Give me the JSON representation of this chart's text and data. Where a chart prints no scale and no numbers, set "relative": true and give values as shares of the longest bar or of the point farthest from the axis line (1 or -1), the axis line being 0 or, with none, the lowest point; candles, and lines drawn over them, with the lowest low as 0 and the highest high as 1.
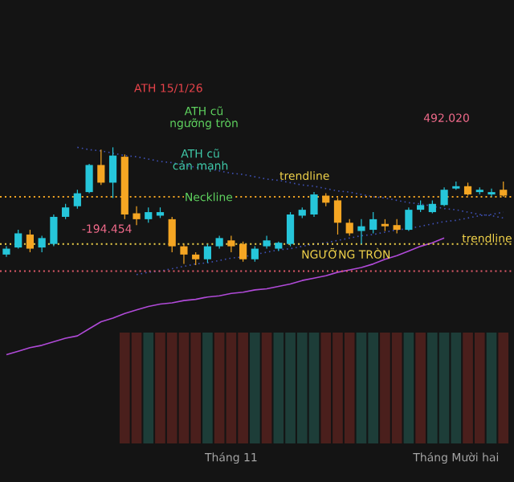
{
  "chart_data": [
    {
      "type": "candlestick",
      "relative": true,
      "tick_labels": false,
      "categories": [
        null,
        null,
        null,
        null,
        null,
        null,
        null,
        null,
        null,
        null,
        null,
        null,
        null,
        null,
        null,
        null,
        null,
        null,
        null,
        null,
        null,
        null,
        null,
        null,
        null,
        null,
        null,
        null,
        null,
        null,
        null,
        null,
        null,
        null,
        null,
        null,
        null,
        null,
        null,
        null,
        null,
        null,
        null
      ],
      "ohlc": [
        [
          0.09,
          0.16,
          0.07,
          0.14
        ],
        [
          0.15,
          0.3,
          0.14,
          0.27
        ],
        [
          0.26,
          0.3,
          0.11,
          0.14
        ],
        [
          0.15,
          0.25,
          0.11,
          0.23
        ],
        [
          0.18,
          0.43,
          0.16,
          0.41
        ],
        [
          0.41,
          0.52,
          0.39,
          0.49
        ],
        [
          0.5,
          0.64,
          0.48,
          0.61
        ],
        [
          0.62,
          0.86,
          0.61,
          0.85
        ],
        [
          0.85,
          0.98,
          0.68,
          0.7
        ],
        [
          0.7,
          1.0,
          0.57,
          0.93
        ],
        [
          0.92,
          0.94,
          0.39,
          0.43
        ],
        [
          0.44,
          0.5,
          0.34,
          0.39
        ],
        [
          0.39,
          0.49,
          0.36,
          0.45
        ],
        [
          0.42,
          0.49,
          0.4,
          0.45
        ],
        [
          0.39,
          0.41,
          0.11,
          0.16
        ],
        [
          0.16,
          0.18,
          0.01,
          0.09
        ],
        [
          0.09,
          0.11,
          0.0,
          0.05
        ],
        [
          0.05,
          0.18,
          0.02,
          0.16
        ],
        [
          0.16,
          0.25,
          0.14,
          0.23
        ],
        [
          0.21,
          0.25,
          0.11,
          0.16
        ],
        [
          0.18,
          0.2,
          0.03,
          0.05
        ],
        [
          0.05,
          0.16,
          0.03,
          0.14
        ],
        [
          0.16,
          0.25,
          0.14,
          0.21
        ],
        [
          0.14,
          0.2,
          0.12,
          0.19
        ],
        [
          0.18,
          0.45,
          0.16,
          0.43
        ],
        [
          0.42,
          0.49,
          0.4,
          0.47
        ],
        [
          0.43,
          0.62,
          0.41,
          0.6
        ],
        [
          0.59,
          0.61,
          0.5,
          0.53
        ],
        [
          0.55,
          0.57,
          0.26,
          0.36
        ],
        [
          0.36,
          0.39,
          0.25,
          0.27
        ],
        [
          0.29,
          0.39,
          0.18,
          0.33
        ],
        [
          0.3,
          0.45,
          0.27,
          0.39
        ],
        [
          0.35,
          0.39,
          0.29,
          0.33
        ],
        [
          0.34,
          0.39,
          0.27,
          0.3
        ],
        [
          0.3,
          0.49,
          0.29,
          0.47
        ],
        [
          0.47,
          0.55,
          0.45,
          0.51
        ],
        [
          0.45,
          0.55,
          0.44,
          0.52
        ],
        [
          0.51,
          0.66,
          0.5,
          0.64
        ],
        [
          0.65,
          0.71,
          0.64,
          0.67
        ],
        [
          0.67,
          0.7,
          0.59,
          0.6
        ],
        [
          0.62,
          0.66,
          0.6,
          0.64
        ],
        [
          0.6,
          0.65,
          0.58,
          0.62
        ],
        [
          0.64,
          0.71,
          0.58,
          0.59
        ]
      ],
      "colors": [
        "#26c6da",
        "#26c6da",
        "#f5a623",
        "#26c6da",
        "#26c6da",
        "#26c6da",
        "#26c6da",
        "#26c6da",
        "#f5a623",
        "#26c6da",
        "#f5a623",
        "#f5a623",
        "#26c6da",
        "#26c6da",
        "#f5a623",
        "#f5a623",
        "#f5a623",
        "#26c6da",
        "#26c6da",
        "#f5a623",
        "#f5a623",
        "#26c6da",
        "#26c6da",
        "#26c6da",
        "#26c6da",
        "#26c6da",
        "#26c6da",
        "#f5a623",
        "#f5a623",
        "#f5a623",
        "#26c6da",
        "#26c6da",
        "#f5a623",
        "#f5a623",
        "#26c6da",
        "#26c6da",
        "#26c6da",
        "#26c6da",
        "#26c6da",
        "#f5a623",
        "#26c6da",
        "#26c6da",
        "#f5a623"
      ],
      "series": [
        {
          "type": "line",
          "values": [
            null,
            null,
            null,
            null,
            null,
            null,
            1.0,
            0.98,
            0.97,
            0.95,
            0.93,
            0.92,
            0.9,
            0.88,
            0.87,
            0.85,
            0.83,
            0.82,
            0.8,
            0.78,
            0.77,
            0.75,
            0.73,
            0.72,
            0.7,
            0.68,
            0.67,
            0.65,
            0.63,
            0.62,
            0.6,
            0.58,
            0.57,
            0.55,
            0.53,
            0.52,
            0.5,
            0.48,
            0.47,
            0.45,
            0.43,
            0.42,
            0.4
          ],
          "color": "#3f51b5",
          "line_style": "dotted"
        },
        {
          "type": "line",
          "values": [
            null,
            null,
            null,
            null,
            null,
            null,
            null,
            null,
            null,
            null,
            null,
            -0.08,
            -0.06,
            -0.05,
            -0.03,
            -0.01,
            0.01,
            0.02,
            0.04,
            0.06,
            0.07,
            0.09,
            0.11,
            0.13,
            0.14,
            0.16,
            0.18,
            0.19,
            0.21,
            0.23,
            0.25,
            0.26,
            0.28,
            0.3,
            0.31,
            0.33,
            0.35,
            0.37,
            0.38,
            0.4,
            0.42,
            0.43,
            0.45
          ],
          "color": "#3f51b5",
          "line_style": "dotted"
        },
        {
          "type": "line",
          "values": [
            -0.76,
            -0.73,
            -0.7,
            -0.68,
            -0.65,
            -0.62,
            -0.6,
            -0.54,
            -0.48,
            -0.45,
            -0.41,
            -0.38,
            -0.35,
            -0.33,
            -0.32,
            -0.3,
            -0.29,
            -0.27,
            -0.26,
            -0.24,
            -0.23,
            -0.21,
            -0.2,
            -0.18,
            -0.16,
            -0.13,
            -0.11,
            -0.09,
            -0.06,
            -0.04,
            -0.02,
            0.01,
            0.05,
            0.08,
            0.12,
            0.16,
            0.19,
            0.23,
            null,
            null,
            null,
            null,
            null
          ],
          "color": "#b04ad8",
          "line_style": "solid"
        }
      ],
      "ref_lines": [
        {
          "axis": "y",
          "value": 0.58,
          "label": "Neckline",
          "color": "#f5a623",
          "line_style": "dotted"
        },
        {
          "axis": "y",
          "value": 0.18,
          "label": "NGƯỠNG TRÒN",
          "color": "#f0d24a",
          "line_style": "dotted"
        },
        {
          "axis": "y",
          "value": -0.05,
          "color": "#e05a6a",
          "line_style": "dotted"
        }
      ],
      "annotations": [
        "ATH 15/1/26",
        "ATH cũ ngưỡng tròn",
        "ATH cũ cản mạnh",
        "trendline",
        "-194.454",
        "492.020",
        "trendline"
      ]
    },
    {
      "type": "bar",
      "relative": true,
      "tick_labels": "x",
      "categories": [
        null,
        null,
        null,
        null,
        null,
        null,
        null,
        null,
        null,
        null,
        null,
        null,
        null,
        null,
        null,
        null,
        null,
        null,
        null,
        "Tháng 11",
        null,
        null,
        null,
        null,
        null,
        null,
        null,
        null,
        null,
        null,
        null,
        null,
        null,
        null,
        null,
        null,
        null,
        null,
        "Tháng Mười hai",
        null,
        null,
        null,
        null
      ],
      "values": [
        null,
        null,
        null,
        null,
        null,
        null,
        null,
        null,
        null,
        null,
        1,
        1,
        1,
        1,
        1,
        1,
        1,
        1,
        1,
        1,
        1,
        1,
        1,
        1,
        1,
        1,
        1,
        1,
        1,
        1,
        1,
        1,
        1,
        1,
        1,
        1,
        1,
        1,
        1,
        1,
        1,
        1,
        1
      ],
      "colors": [
        null,
        null,
        null,
        null,
        null,
        null,
        null,
        null,
        null,
        null,
        "#4a1f1c",
        "#4a1f1c",
        "#1d3d38",
        "#4a1f1c",
        "#4a1f1c",
        "#4a1f1c",
        "#4a1f1c",
        "#1d3d38",
        "#4a1f1c",
        "#4a1f1c",
        "#4a1f1c",
        "#1d3d38",
        "#4a1f1c",
        "#1d3d38",
        "#1d3d38",
        "#1d3d38",
        "#1d3d38",
        "#4a1f1c",
        "#4a1f1c",
        "#4a1f1c",
        "#1d3d38",
        "#1d3d38",
        "#4a1f1c",
        "#4a1f1c",
        "#1d3d38",
        "#4a1f1c",
        "#1d3d38",
        "#1d3d38",
        "#1d3d38",
        "#4a1f1c",
        "#4a1f1c",
        "#1d3d38",
        "#4a1f1c"
      ]
    }
  ]
}
